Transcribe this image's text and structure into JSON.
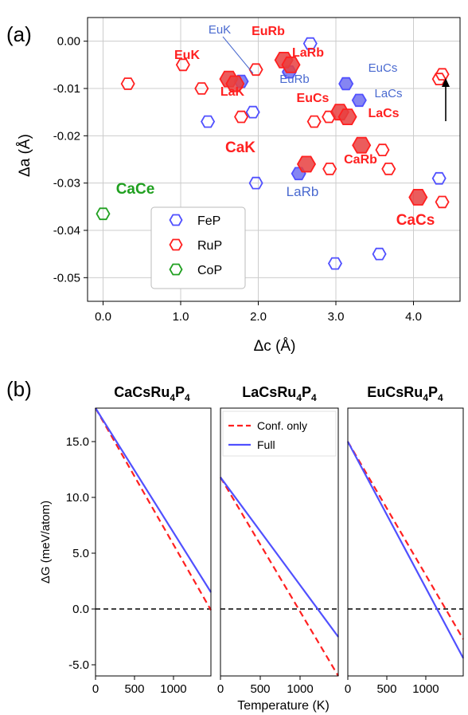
{
  "colors": {
    "fep": "#5050ff",
    "fep_fill": "#7070f0",
    "fep_label": "#4a6ad0",
    "rup": "#ff2020",
    "rup_fill": "#e84040",
    "cop": "#20a020",
    "grid": "#cccccc",
    "axis": "#000000"
  },
  "chart_data": [
    {
      "panel_label": "(a)",
      "type": "scatter",
      "xlabel": "Δc (Å)",
      "ylabel": "Δa (Å)",
      "xlim": [
        -0.2,
        4.6
      ],
      "ylim": [
        -0.055,
        0.005
      ],
      "xticks": [
        0.0,
        1.0,
        2.0,
        3.0,
        4.0
      ],
      "xtick_labels": [
        "0.0",
        "1.0",
        "2.0",
        "3.0",
        "4.0"
      ],
      "yticks": [
        0.0,
        -0.01,
        -0.02,
        -0.03,
        -0.04,
        -0.05
      ],
      "ytick_labels": [
        "0.00",
        "-0.01",
        "-0.02",
        "-0.03",
        "-0.04",
        "-0.05"
      ],
      "grid": true,
      "legend": {
        "placement": "lower-left"
      },
      "series": [
        {
          "name": "FeP",
          "color_key": "fep",
          "points": [
            {
              "x": 1.35,
              "y": -0.017
            },
            {
              "x": 1.93,
              "y": -0.015
            },
            {
              "x": 2.67,
              "y": -0.0005
            },
            {
              "x": 1.97,
              "y": -0.03
            },
            {
              "x": 2.99,
              "y": -0.047
            },
            {
              "x": 3.56,
              "y": -0.045
            },
            {
              "x": 4.33,
              "y": -0.029
            }
          ],
          "highlight": [
            {
              "x": 1.78,
              "y": -0.0085,
              "label": "EuK"
            },
            {
              "x": 2.4,
              "y": -0.0065,
              "label": "EuRb"
            },
            {
              "x": 3.13,
              "y": -0.009,
              "label": "EuCs"
            },
            {
              "x": 3.3,
              "y": -0.0125,
              "label": "LaCs"
            },
            {
              "x": 2.52,
              "y": -0.028,
              "label": "LaRb"
            }
          ]
        },
        {
          "name": "RuP",
          "color_key": "rup",
          "points": [
            {
              "x": 0.32,
              "y": -0.009
            },
            {
              "x": 1.03,
              "y": -0.005
            },
            {
              "x": 1.27,
              "y": -0.01
            },
            {
              "x": 1.97,
              "y": -0.006
            },
            {
              "x": 1.78,
              "y": -0.016
            },
            {
              "x": 2.72,
              "y": -0.017
            },
            {
              "x": 2.91,
              "y": -0.016
            },
            {
              "x": 2.92,
              "y": -0.027
            },
            {
              "x": 3.6,
              "y": -0.023
            },
            {
              "x": 3.68,
              "y": -0.027
            },
            {
              "x": 4.33,
              "y": -0.008
            },
            {
              "x": 4.37,
              "y": -0.007
            },
            {
              "x": 4.37,
              "y": -0.034
            }
          ],
          "highlight": [
            {
              "x": 1.62,
              "y": -0.008,
              "label": "EuK"
            },
            {
              "x": 1.7,
              "y": -0.009,
              "label": "LaK"
            },
            {
              "x": 2.33,
              "y": -0.004,
              "label": "EuRb"
            },
            {
              "x": 2.42,
              "y": -0.005,
              "label": "LaRb"
            },
            {
              "x": 3.05,
              "y": -0.015,
              "label": "EuCs"
            },
            {
              "x": 3.15,
              "y": -0.016,
              "label": "LaCs"
            },
            {
              "x": 2.62,
              "y": -0.026,
              "label": "CaK"
            },
            {
              "x": 3.33,
              "y": -0.022,
              "label": "CaRb"
            },
            {
              "x": 4.06,
              "y": -0.033,
              "label": "CaCs"
            }
          ]
        },
        {
          "name": "CoP",
          "color_key": "cop",
          "points": [
            {
              "x": 0.0,
              "y": -0.0365
            }
          ]
        }
      ],
      "annotations": [
        {
          "text": "EuK",
          "color_key": "fep_label"
        },
        {
          "text": "EuRb",
          "color_key": "rup"
        },
        {
          "text": "EuK",
          "color_key": "rup"
        },
        {
          "text": "LaRb",
          "color_key": "rup"
        },
        {
          "text": "EuRb",
          "color_key": "fep_label"
        },
        {
          "text": "EuCs",
          "color_key": "fep_label"
        },
        {
          "text": "LaK",
          "color_key": "rup"
        },
        {
          "text": "LaCs",
          "color_key": "fep_label"
        },
        {
          "text": "EuCs",
          "color_key": "rup"
        },
        {
          "text": "LaCs",
          "color_key": "rup"
        },
        {
          "text": "CaK",
          "color_key": "rup"
        },
        {
          "text": "CaRb",
          "color_key": "rup"
        },
        {
          "text": "LaRb",
          "color_key": "fep_label"
        },
        {
          "text": "CaCe",
          "color_key": "cop"
        },
        {
          "text": "CaCs",
          "color_key": "rup"
        }
      ],
      "arrow": {
        "points_to": "up",
        "description_shown": false
      }
    },
    {
      "panel_label": "(b)",
      "type": "line",
      "ylabel": "ΔG (meV/atom)",
      "xlabel": "Temperature (K)",
      "ylim": [
        -6.0,
        18.0
      ],
      "yticks": [
        -5.0,
        0.0,
        5.0,
        10.0,
        15.0
      ],
      "ytick_labels": [
        "-5.0",
        "0.0",
        "5.0",
        "10.0",
        "15.0"
      ],
      "xlim": [
        0,
        1480
      ],
      "xticks": [
        0,
        500,
        1000
      ],
      "xtick_labels": [
        "0",
        "500",
        "1000"
      ],
      "legend": {
        "placement": "top",
        "entries": [
          "Conf. only",
          "Full"
        ]
      },
      "zero_line": true,
      "subplots": [
        {
          "title_parts": [
            "CaCsRu",
            "4",
            "P",
            "4"
          ],
          "series": [
            {
              "name": "Conf. only",
              "style": "dashed",
              "color_key": "rup",
              "x": [
                0,
                1480
              ],
              "y": [
                18.0,
                -0.1
              ]
            },
            {
              "name": "Full",
              "style": "solid",
              "color_key": "fep",
              "x": [
                0,
                1480
              ],
              "y": [
                18.0,
                1.5
              ]
            }
          ]
        },
        {
          "title_parts": [
            "LaCsRu",
            "4",
            "P",
            "4"
          ],
          "series": [
            {
              "name": "Conf. only",
              "style": "dashed",
              "color_key": "rup",
              "x": [
                0,
                1480
              ],
              "y": [
                11.8,
                -6.0
              ]
            },
            {
              "name": "Full",
              "style": "solid",
              "color_key": "fep",
              "x": [
                0,
                1480
              ],
              "y": [
                11.8,
                -2.5
              ]
            }
          ]
        },
        {
          "title_parts": [
            "EuCsRu",
            "4",
            "P",
            "4"
          ],
          "series": [
            {
              "name": "Conf. only",
              "style": "dashed",
              "color_key": "rup",
              "x": [
                0,
                1480
              ],
              "y": [
                15.0,
                -2.7
              ]
            },
            {
              "name": "Full",
              "style": "solid",
              "color_key": "fep",
              "x": [
                0,
                1480
              ],
              "y": [
                15.0,
                -4.4
              ]
            }
          ]
        }
      ]
    }
  ]
}
